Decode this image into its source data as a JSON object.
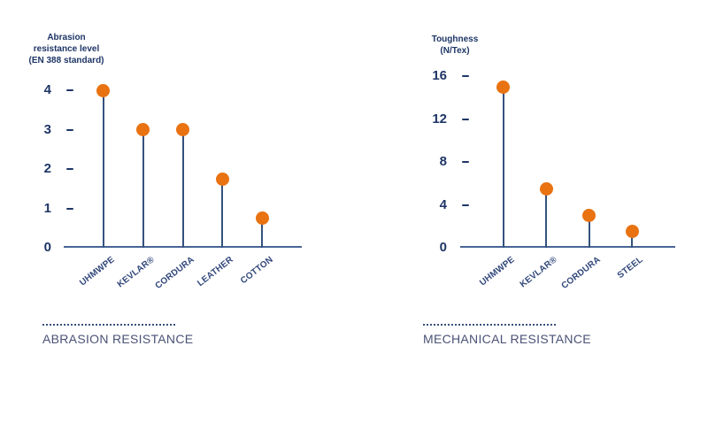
{
  "page": {
    "background": "#ffffff"
  },
  "colors": {
    "accent_orange": "#e97211",
    "navy": "#1e3566",
    "stem_blue": "#35527f",
    "axis_blue": "#4a6594",
    "caption_navy": "#4a5276",
    "xlabel_navy": "#31477b"
  },
  "chart_data": [
    {
      "type": "bar",
      "style": "lollipop",
      "title": "Abrasion resistance level (EN 388 standard)",
      "title_lines": [
        "Abrasion",
        "resistance level",
        "(EN 388 standard)"
      ],
      "categories": [
        "UHMWPE",
        "KEVLAR®",
        "CORDURA",
        "LEATHER",
        "COTTON"
      ],
      "values": [
        4,
        3,
        3,
        1.75,
        0.75
      ],
      "ylim": [
        0,
        4
      ],
      "yticks": [
        0,
        1,
        2,
        3,
        4
      ],
      "xlabel": "",
      "ylabel": "Abrasion resistance level (EN 388 standard)",
      "grid": false,
      "legend": false,
      "caption": "ABRASION RESISTANCE"
    },
    {
      "type": "bar",
      "style": "lollipop",
      "title": "Toughness (N/Tex)",
      "title_lines": [
        "Toughness",
        "(N/Tex)"
      ],
      "categories": [
        "UHMWPE",
        "KEVLAR®",
        "CORDURA",
        "STEEL"
      ],
      "values": [
        15,
        5.5,
        3,
        1.5
      ],
      "ylim": [
        0,
        16
      ],
      "yticks": [
        0,
        4,
        8,
        12,
        16
      ],
      "xlabel": "",
      "ylabel": "Toughness (N/Tex)",
      "grid": false,
      "legend": false,
      "caption": "MECHANICAL RESISTANCE"
    }
  ]
}
